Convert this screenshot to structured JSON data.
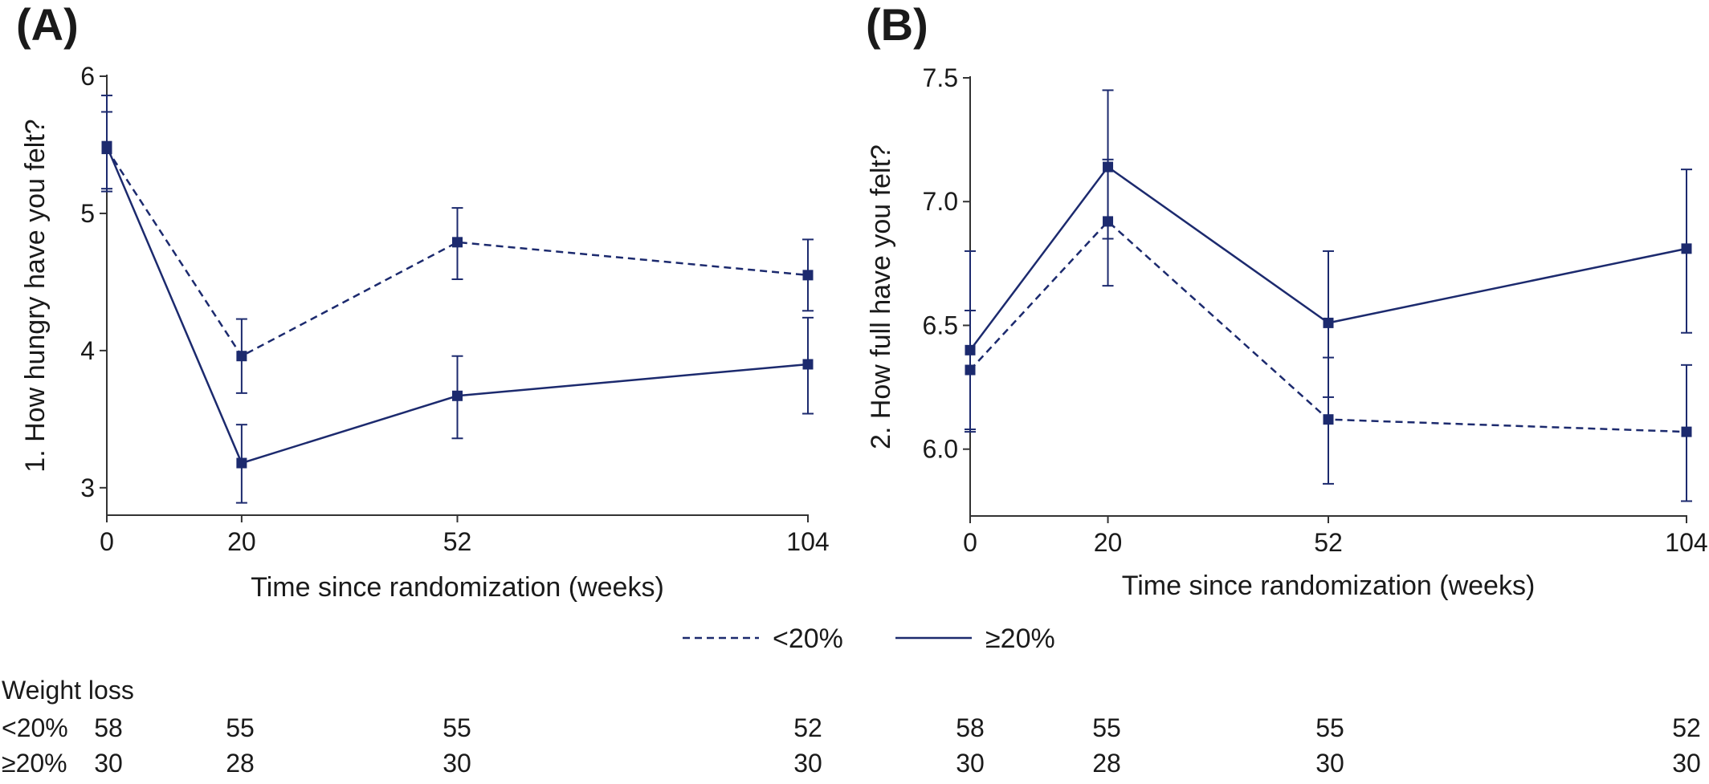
{
  "colors": {
    "series": "#1c2a6e",
    "axis": "#333333"
  },
  "chart_data": [
    {
      "panel": "(A)",
      "type": "line",
      "x": [
        0,
        20,
        52,
        104
      ],
      "xticks": [
        "0",
        "20",
        "52",
        "104"
      ],
      "yticks": [
        "3",
        "4",
        "5",
        "6"
      ],
      "ylim": [
        2.8,
        6.0
      ],
      "xlabel": "Time since randomization (weeks)",
      "ylabel": "1. How hungry have you felt?",
      "series": [
        {
          "name": "<20%",
          "style": "dashed",
          "values": [
            5.47,
            3.96,
            4.79,
            4.55
          ],
          "lower": [
            5.18,
            3.69,
            4.52,
            4.29
          ],
          "upper": [
            5.74,
            4.23,
            5.04,
            4.81
          ]
        },
        {
          "name": "≥20%",
          "style": "solid",
          "values": [
            5.49,
            3.18,
            3.67,
            3.9
          ],
          "lower": [
            5.16,
            2.89,
            3.36,
            3.54
          ],
          "upper": [
            5.86,
            3.46,
            3.96,
            4.24
          ]
        }
      ]
    },
    {
      "panel": "(B)",
      "type": "line",
      "x": [
        0,
        20,
        52,
        104
      ],
      "xticks": [
        "0",
        "20",
        "52",
        "104"
      ],
      "yticks": [
        "6.0",
        "6.5",
        "7.0",
        "7.5"
      ],
      "ylim": [
        5.73,
        7.5
      ],
      "xlabel": "Time since randomization (weeks)",
      "ylabel": "2. How full have you felt?",
      "series": [
        {
          "name": "<20%",
          "style": "dashed",
          "values": [
            6.32,
            6.92,
            6.12,
            6.07
          ],
          "lower": [
            6.08,
            6.66,
            5.86,
            5.79
          ],
          "upper": [
            6.56,
            7.17,
            6.37,
            6.34
          ]
        },
        {
          "name": "≥20%",
          "style": "solid",
          "values": [
            6.4,
            7.14,
            6.51,
            6.81
          ],
          "lower": [
            6.07,
            6.85,
            6.21,
            6.47
          ],
          "upper": [
            6.8,
            7.45,
            6.8,
            7.13
          ]
        }
      ]
    }
  ],
  "legend": [
    {
      "label": "<20%",
      "style": "dashed"
    },
    {
      "label": "≥20%",
      "style": "solid"
    }
  ],
  "risk_table": {
    "header": "Weight loss",
    "rows": [
      {
        "label": "<20%",
        "panel_a": [
          "58",
          "55",
          "55",
          "52"
        ],
        "panel_b": [
          "58",
          "55",
          "55",
          "52"
        ]
      },
      {
        "label": "≥20%",
        "panel_a": [
          "30",
          "28",
          "30",
          "30"
        ],
        "panel_b": [
          "30",
          "28",
          "30",
          "30"
        ]
      }
    ]
  }
}
